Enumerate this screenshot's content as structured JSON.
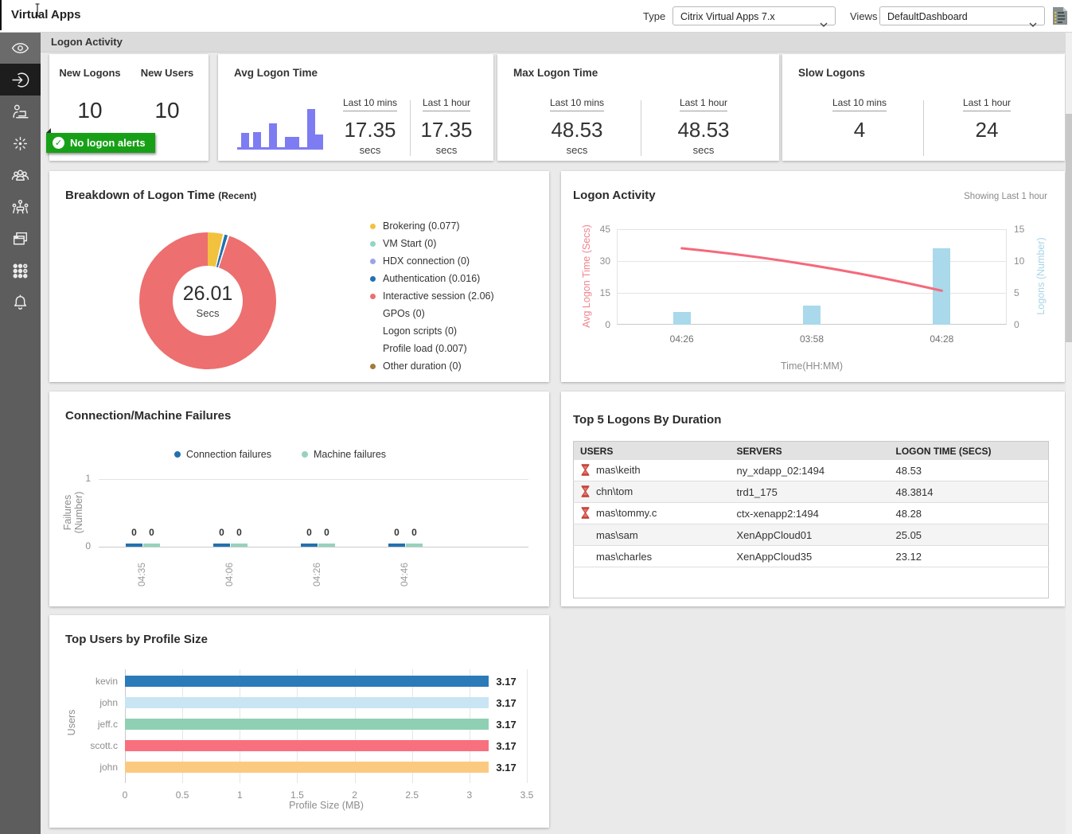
{
  "header": {
    "title": "Virtual Apps",
    "type_label": "Type",
    "type_value": "Citrix Virtual Apps 7.x",
    "views_label": "Views",
    "views_value": "DefaultDashboard"
  },
  "section_title": "Logon Activity",
  "kpis": {
    "logons": {
      "col1_label": "New Logons",
      "col1_value": "10",
      "col2_label": "New Users",
      "col2_value": "10",
      "badge": "No logon alerts"
    },
    "avg": {
      "title": "Avg Logon Time",
      "col1_label": "Last 10 mins",
      "col1_value": "17.35",
      "col1_unit": "secs",
      "col2_label": "Last 1 hour",
      "col2_value": "17.35",
      "col2_unit": "secs"
    },
    "max": {
      "title": "Max Logon Time",
      "col1_label": "Last 10 mins",
      "col1_value": "48.53",
      "col1_unit": "secs",
      "col2_label": "Last 1 hour",
      "col2_value": "48.53",
      "col2_unit": "secs"
    },
    "slow": {
      "title": "Slow Logons",
      "col1_label": "Last 10 mins",
      "col1_value": "4",
      "col2_label": "Last 1 hour",
      "col2_value": "24"
    }
  },
  "top5": {
    "title": "Top 5 Logons By Duration",
    "columns": [
      "USERS",
      "SERVERS",
      "LOGON TIME (SECS)"
    ],
    "rows": [
      {
        "user": "mas\\keith",
        "server": "ny_xdapp_02:1494",
        "time": "48.53",
        "slow": true
      },
      {
        "user": "chn\\tom",
        "server": "trd1_175",
        "time": "48.3814",
        "slow": true
      },
      {
        "user": "mas\\tommy.c",
        "server": "ctx-xenapp2:1494",
        "time": "48.28",
        "slow": true
      },
      {
        "user": "mas\\sam",
        "server": "XenAppCloud01",
        "time": "25.05",
        "slow": false
      },
      {
        "user": "mas\\charles",
        "server": "XenAppCloud35",
        "time": "23.12",
        "slow": false
      }
    ]
  },
  "chart_data": [
    {
      "id": "avg_logon_sparkline",
      "type": "bar",
      "values": [
        18,
        19,
        30,
        13,
        48,
        16
      ],
      "color": "#7e7cf2",
      "note": "relative heights, no axes shown"
    },
    {
      "id": "breakdown_donut",
      "type": "pie",
      "title": "Breakdown of Logon Time",
      "subtitle": "(Recent)",
      "center_value": "26.01",
      "center_unit": "Secs",
      "slices": [
        {
          "label": "Brokering",
          "value": 0.077,
          "color": "#f2c23e"
        },
        {
          "label": "VM Start",
          "value": 0,
          "color": "#93d5c5"
        },
        {
          "label": "HDX connection",
          "value": 0,
          "color": "#9aa3e8"
        },
        {
          "label": "Authentication",
          "value": 0.016,
          "color": "#2171b1"
        },
        {
          "label": "Interactive session",
          "value": 2.06,
          "color": "#ed6f6f"
        },
        {
          "label": "GPOs",
          "value": 0,
          "color": "#ffffff"
        },
        {
          "label": "Logon scripts",
          "value": 0,
          "color": "#ffffff"
        },
        {
          "label": "Profile load",
          "value": 0.007,
          "color": "#ffffff"
        },
        {
          "label": "Other duration",
          "value": 0,
          "color": "#a37b3d"
        }
      ]
    },
    {
      "id": "logon_activity",
      "type": "line+bar",
      "title": "Logon Activity",
      "showing": "Showing Last 1 hour",
      "x": [
        "04:26",
        "03:58",
        "04:28"
      ],
      "xlabel": "Time(HH:MM)",
      "line_series": {
        "name": "Avg Logon Time (Secs)",
        "color": "#f5697b",
        "values": [
          36,
          28,
          16
        ],
        "axis_ticks": [
          0,
          15,
          30,
          45
        ],
        "ylim": [
          0,
          45
        ]
      },
      "bar_series": {
        "name": "Logons (Number)",
        "color": "#a9d9ea",
        "values": [
          2,
          3,
          12
        ],
        "axis_ticks": [
          0,
          5,
          10,
          15
        ],
        "ylim": [
          0,
          15
        ]
      }
    },
    {
      "id": "failures",
      "type": "bar",
      "title": "Connection/Machine Failures",
      "categories": [
        "04:35",
        "04:06",
        "04:26",
        "04:46"
      ],
      "series": [
        {
          "name": "Connection failures",
          "color": "#2171b1",
          "values": [
            0,
            0,
            0,
            0
          ]
        },
        {
          "name": "Machine failures",
          "color": "#96d2bc",
          "values": [
            0,
            0,
            0,
            0
          ]
        }
      ],
      "ylabel1": "Failures",
      "ylabel2": "(Number)",
      "yticks": [
        0,
        1
      ],
      "ylim": [
        0,
        1
      ]
    },
    {
      "id": "profile_size",
      "type": "hbar",
      "title": "Top Users by Profile Size",
      "categories": [
        "kevin",
        "john",
        "jeff.c",
        "scott.c",
        "john"
      ],
      "values": [
        3.17,
        3.17,
        3.17,
        3.17,
        3.17
      ],
      "colors": [
        "#2b7bb9",
        "#c9e5f4",
        "#8fd0b4",
        "#f8707e",
        "#fbca80"
      ],
      "xlabel": "Profile Size (MB)",
      "ylabel": "Users",
      "xticks": [
        0,
        0.5,
        1,
        1.5,
        2,
        2.5,
        3,
        3.5
      ],
      "xlim": [
        0,
        3.5
      ]
    }
  ],
  "scrollbar": {
    "present": true
  }
}
